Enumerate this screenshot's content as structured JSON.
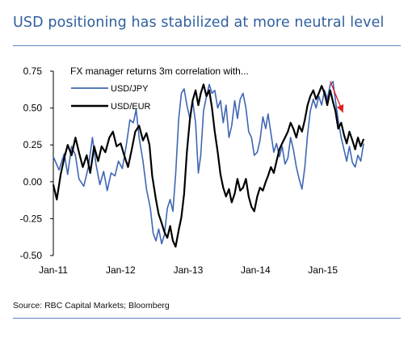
{
  "page": {
    "title": "USD positioning has stabilized at more neutral level",
    "source": "Source: RBC Capital Markets; Bloomberg"
  },
  "colors": {
    "title": "#2f5f9e",
    "rule": "#5a86c3",
    "usdjpy": "#3f66b3",
    "usdeur": "#000000",
    "arrow": "#e02020"
  },
  "chart_data": {
    "type": "line",
    "title": "FX manager returns 3m correlation with...",
    "xlabel": "",
    "ylabel": "",
    "ylim": [
      -0.5,
      0.75
    ],
    "yticks": [
      -0.5,
      -0.25,
      0.0,
      0.25,
      0.5,
      0.75
    ],
    "ytick_labels": [
      "-0.50",
      "-0.25",
      "0.00",
      "0.25",
      "0.50",
      "0.75"
    ],
    "xlim": [
      "2011-01-01",
      "2015-10-01"
    ],
    "xticks": [
      "2011-01-01",
      "2012-01-01",
      "2013-01-01",
      "2014-01-01",
      "2015-01-01"
    ],
    "xtick_labels": [
      "Jan-11",
      "Jan-12",
      "Jan-13",
      "Jan-14",
      "Jan-15"
    ],
    "grid": false,
    "legend_position": "top-left",
    "annotations": [
      {
        "type": "arrow",
        "color": "#e02020",
        "from": [
          "2015-02-10",
          0.68
        ],
        "to": [
          "2015-04-20",
          0.47
        ]
      }
    ],
    "series": [
      {
        "name": "USD/JPY",
        "color": "#3f66b3",
        "points": [
          [
            "2011-01-01",
            0.17
          ],
          [
            "2011-02-01",
            0.08
          ],
          [
            "2011-03-01",
            0.19
          ],
          [
            "2011-03-20",
            0.05
          ],
          [
            "2011-04-10",
            0.24
          ],
          [
            "2011-05-01",
            0.18
          ],
          [
            "2011-05-20",
            0.02
          ],
          [
            "2011-06-15",
            -0.03
          ],
          [
            "2011-07-10",
            0.1
          ],
          [
            "2011-08-01",
            0.3
          ],
          [
            "2011-08-20",
            0.12
          ],
          [
            "2011-09-10",
            -0.02
          ],
          [
            "2011-10-01",
            0.07
          ],
          [
            "2011-10-20",
            -0.06
          ],
          [
            "2011-11-10",
            0.06
          ],
          [
            "2011-12-01",
            0.04
          ],
          [
            "2011-12-20",
            0.14
          ],
          [
            "2012-01-10",
            0.09
          ],
          [
            "2012-02-01",
            0.25
          ],
          [
            "2012-02-20",
            0.42
          ],
          [
            "2012-03-10",
            0.4
          ],
          [
            "2012-03-25",
            0.49
          ],
          [
            "2012-04-10",
            0.3
          ],
          [
            "2012-05-01",
            0.14
          ],
          [
            "2012-05-20",
            -0.05
          ],
          [
            "2012-06-10",
            -0.18
          ],
          [
            "2012-06-25",
            -0.35
          ],
          [
            "2012-07-10",
            -0.4
          ],
          [
            "2012-07-25",
            -0.32
          ],
          [
            "2012-08-10",
            -0.42
          ],
          [
            "2012-08-25",
            -0.36
          ],
          [
            "2012-09-10",
            -0.18
          ],
          [
            "2012-09-25",
            -0.12
          ],
          [
            "2012-10-10",
            -0.2
          ],
          [
            "2012-10-25",
            0.05
          ],
          [
            "2012-11-10",
            0.42
          ],
          [
            "2012-11-25",
            0.6
          ],
          [
            "2012-12-10",
            0.63
          ],
          [
            "2012-12-25",
            0.52
          ],
          [
            "2013-01-10",
            0.43
          ],
          [
            "2013-01-25",
            0.55
          ],
          [
            "2013-02-10",
            0.4
          ],
          [
            "2013-02-25",
            0.06
          ],
          [
            "2013-03-10",
            0.18
          ],
          [
            "2013-03-25",
            0.48
          ],
          [
            "2013-04-10",
            0.58
          ],
          [
            "2013-04-25",
            0.66
          ],
          [
            "2013-05-10",
            0.6
          ],
          [
            "2013-05-25",
            0.62
          ],
          [
            "2013-06-10",
            0.5
          ],
          [
            "2013-06-25",
            0.55
          ],
          [
            "2013-07-10",
            0.4
          ],
          [
            "2013-07-25",
            0.52
          ],
          [
            "2013-08-10",
            0.3
          ],
          [
            "2013-08-25",
            0.38
          ],
          [
            "2013-09-10",
            0.55
          ],
          [
            "2013-09-25",
            0.43
          ],
          [
            "2013-10-10",
            0.56
          ],
          [
            "2013-10-25",
            0.6
          ],
          [
            "2013-11-10",
            0.5
          ],
          [
            "2013-11-25",
            0.34
          ],
          [
            "2013-12-10",
            0.3
          ],
          [
            "2013-12-25",
            0.18
          ],
          [
            "2014-01-10",
            0.2
          ],
          [
            "2014-01-25",
            0.28
          ],
          [
            "2014-02-10",
            0.44
          ],
          [
            "2014-02-25",
            0.36
          ],
          [
            "2014-03-10",
            0.46
          ],
          [
            "2014-03-25",
            0.33
          ],
          [
            "2014-04-10",
            0.2
          ],
          [
            "2014-04-25",
            0.26
          ],
          [
            "2014-05-10",
            0.17
          ],
          [
            "2014-05-25",
            0.24
          ],
          [
            "2014-06-10",
            0.12
          ],
          [
            "2014-06-25",
            0.16
          ],
          [
            "2014-07-10",
            0.3
          ],
          [
            "2014-07-25",
            0.22
          ],
          [
            "2014-08-10",
            0.1
          ],
          [
            "2014-08-25",
            0.02
          ],
          [
            "2014-09-10",
            -0.05
          ],
          [
            "2014-09-25",
            0.1
          ],
          [
            "2014-10-10",
            0.32
          ],
          [
            "2014-10-25",
            0.48
          ],
          [
            "2014-11-10",
            0.56
          ],
          [
            "2014-11-25",
            0.5
          ],
          [
            "2014-12-10",
            0.58
          ],
          [
            "2014-12-25",
            0.52
          ],
          [
            "2015-01-10",
            0.62
          ],
          [
            "2015-01-25",
            0.56
          ],
          [
            "2015-02-10",
            0.66
          ],
          [
            "2015-02-25",
            0.68
          ],
          [
            "2015-03-10",
            0.55
          ],
          [
            "2015-03-25",
            0.42
          ],
          [
            "2015-04-10",
            0.3
          ],
          [
            "2015-04-25",
            0.22
          ],
          [
            "2015-05-10",
            0.14
          ],
          [
            "2015-05-25",
            0.24
          ],
          [
            "2015-06-10",
            0.13
          ],
          [
            "2015-06-25",
            0.1
          ],
          [
            "2015-07-10",
            0.18
          ],
          [
            "2015-07-25",
            0.14
          ],
          [
            "2015-08-10",
            0.26
          ]
        ]
      },
      {
        "name": "USD/EUR",
        "color": "#000000",
        "points": [
          [
            "2011-01-01",
            -0.02
          ],
          [
            "2011-01-20",
            -0.12
          ],
          [
            "2011-02-10",
            0.05
          ],
          [
            "2011-03-01",
            0.16
          ],
          [
            "2011-03-20",
            0.25
          ],
          [
            "2011-04-10",
            0.18
          ],
          [
            "2011-05-01",
            0.3
          ],
          [
            "2011-05-20",
            0.2
          ],
          [
            "2011-06-10",
            0.1
          ],
          [
            "2011-07-01",
            0.18
          ],
          [
            "2011-07-20",
            0.06
          ],
          [
            "2011-08-10",
            0.24
          ],
          [
            "2011-09-01",
            0.14
          ],
          [
            "2011-09-20",
            0.24
          ],
          [
            "2011-10-10",
            0.2
          ],
          [
            "2011-11-01",
            0.3
          ],
          [
            "2011-11-20",
            0.34
          ],
          [
            "2011-12-10",
            0.24
          ],
          [
            "2012-01-01",
            0.26
          ],
          [
            "2012-01-20",
            0.18
          ],
          [
            "2012-02-10",
            0.1
          ],
          [
            "2012-03-01",
            0.22
          ],
          [
            "2012-03-20",
            0.34
          ],
          [
            "2012-04-10",
            0.38
          ],
          [
            "2012-05-01",
            0.28
          ],
          [
            "2012-05-20",
            0.33
          ],
          [
            "2012-06-05",
            0.25
          ],
          [
            "2012-06-20",
            0.04
          ],
          [
            "2012-07-10",
            -0.12
          ],
          [
            "2012-07-25",
            -0.22
          ],
          [
            "2012-08-10",
            -0.28
          ],
          [
            "2012-08-25",
            -0.34
          ],
          [
            "2012-09-10",
            -0.38
          ],
          [
            "2012-09-25",
            -0.3
          ],
          [
            "2012-10-10",
            -0.4
          ],
          [
            "2012-10-25",
            -0.44
          ],
          [
            "2012-11-10",
            -0.33
          ],
          [
            "2012-11-25",
            -0.24
          ],
          [
            "2012-12-10",
            -0.08
          ],
          [
            "2012-12-25",
            0.2
          ],
          [
            "2013-01-10",
            0.42
          ],
          [
            "2013-01-25",
            0.55
          ],
          [
            "2013-02-10",
            0.62
          ],
          [
            "2013-02-25",
            0.52
          ],
          [
            "2013-03-10",
            0.6
          ],
          [
            "2013-03-25",
            0.66
          ],
          [
            "2013-04-10",
            0.58
          ],
          [
            "2013-04-25",
            0.62
          ],
          [
            "2013-05-10",
            0.5
          ],
          [
            "2013-05-25",
            0.34
          ],
          [
            "2013-06-10",
            0.2
          ],
          [
            "2013-06-25",
            0.05
          ],
          [
            "2013-07-10",
            -0.04
          ],
          [
            "2013-07-25",
            -0.1
          ],
          [
            "2013-08-10",
            -0.05
          ],
          [
            "2013-08-25",
            -0.14
          ],
          [
            "2013-09-10",
            -0.08
          ],
          [
            "2013-09-25",
            0.02
          ],
          [
            "2013-10-10",
            -0.06
          ],
          [
            "2013-10-25",
            -0.04
          ],
          [
            "2013-11-10",
            0.02
          ],
          [
            "2013-11-25",
            -0.1
          ],
          [
            "2013-12-10",
            -0.17
          ],
          [
            "2013-12-25",
            -0.2
          ],
          [
            "2014-01-10",
            -0.1
          ],
          [
            "2014-01-25",
            -0.04
          ],
          [
            "2014-02-10",
            -0.06
          ],
          [
            "2014-02-25",
            0.0
          ],
          [
            "2014-03-10",
            0.04
          ],
          [
            "2014-03-25",
            0.1
          ],
          [
            "2014-04-10",
            0.06
          ],
          [
            "2014-04-25",
            0.14
          ],
          [
            "2014-05-10",
            0.22
          ],
          [
            "2014-05-25",
            0.26
          ],
          [
            "2014-06-10",
            0.3
          ],
          [
            "2014-06-25",
            0.34
          ],
          [
            "2014-07-10",
            0.4
          ],
          [
            "2014-07-25",
            0.36
          ],
          [
            "2014-08-10",
            0.3
          ],
          [
            "2014-08-25",
            0.38
          ],
          [
            "2014-09-10",
            0.34
          ],
          [
            "2014-09-25",
            0.42
          ],
          [
            "2014-10-10",
            0.52
          ],
          [
            "2014-10-25",
            0.58
          ],
          [
            "2014-11-10",
            0.62
          ],
          [
            "2014-11-25",
            0.56
          ],
          [
            "2014-12-10",
            0.6
          ],
          [
            "2014-12-25",
            0.65
          ],
          [
            "2015-01-10",
            0.6
          ],
          [
            "2015-01-25",
            0.52
          ],
          [
            "2015-02-10",
            0.62
          ],
          [
            "2015-02-25",
            0.54
          ],
          [
            "2015-03-10",
            0.48
          ],
          [
            "2015-03-25",
            0.36
          ],
          [
            "2015-04-10",
            0.4
          ],
          [
            "2015-04-25",
            0.32
          ],
          [
            "2015-05-10",
            0.26
          ],
          [
            "2015-05-25",
            0.34
          ],
          [
            "2015-06-10",
            0.28
          ],
          [
            "2015-06-25",
            0.22
          ],
          [
            "2015-07-10",
            0.3
          ],
          [
            "2015-07-25",
            0.24
          ],
          [
            "2015-08-10",
            0.29
          ]
        ]
      }
    ]
  }
}
